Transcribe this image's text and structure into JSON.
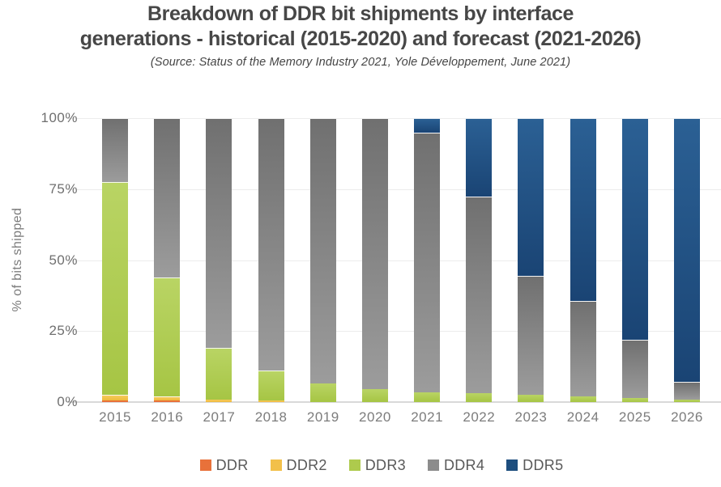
{
  "header": {
    "title_line1": "Breakdown of DDR bit shipments by interface",
    "title_line2": "generations - historical (2015-2020) and forecast (2021-2026)",
    "subtitle": "(Source: Status of the Memory Industry 2021, Yole Développement, June 2021)"
  },
  "chart_data": {
    "type": "bar",
    "stacked": true,
    "title": "Breakdown of DDR bit shipments by interface generations - historical (2015-2020) and forecast (2021-2026)",
    "source_note": "(Source: Status of the Memory Industry 2021, Yole Développement, June 2021)",
    "xlabel": "",
    "ylabel": "% of bits shipped",
    "units": "%",
    "ylim": [
      0,
      100
    ],
    "ytick_labels": [
      "0%",
      "25%",
      "50%",
      "75%",
      "100%"
    ],
    "ytick_values": [
      0,
      25,
      50,
      75,
      100
    ],
    "grid": true,
    "legend_position": "bottom",
    "categories": [
      "2015",
      "2016",
      "2017",
      "2018",
      "2019",
      "2020",
      "2021",
      "2022",
      "2023",
      "2024",
      "2025",
      "2026"
    ],
    "series": [
      {
        "name": "DDR",
        "color": "#E8713A",
        "values": [
          0.5,
          0.5,
          0,
          0,
          0,
          0,
          0,
          0,
          0,
          0,
          0,
          0
        ]
      },
      {
        "name": "DDR2",
        "color": "#F2C04A",
        "values": [
          2,
          1.5,
          1,
          0.5,
          0,
          0,
          0,
          0,
          0,
          0,
          0,
          0
        ]
      },
      {
        "name": "DDR3",
        "color": "#AECA4D",
        "values": [
          75,
          42,
          18,
          10.5,
          6.5,
          4.5,
          3.5,
          3,
          2.5,
          2,
          1.5,
          1
        ]
      },
      {
        "name": "DDR4",
        "color": "#8C8C8C",
        "values": [
          22.5,
          56,
          81,
          89,
          93.5,
          95.5,
          91.5,
          69.5,
          42,
          33.5,
          20.5,
          6
        ]
      },
      {
        "name": "DDR5",
        "color": "#1D4E7E",
        "values": [
          0,
          0,
          0,
          0,
          0,
          0,
          5,
          27.5,
          55.5,
          64.5,
          78,
          93
        ]
      }
    ]
  }
}
